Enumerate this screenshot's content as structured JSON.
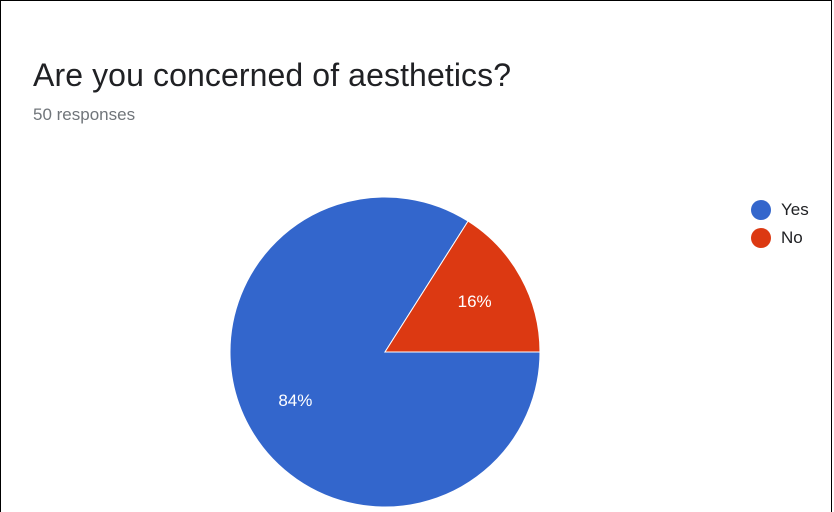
{
  "title": "Are you concerned of aesthetics?",
  "subtitle": "50 responses",
  "chart_data": {
    "type": "pie",
    "title": "Are you concerned of aesthetics?",
    "subtitle": "50 responses",
    "categories": [
      "Yes",
      "No"
    ],
    "values": [
      84,
      16
    ],
    "labels": [
      "84%",
      "16%"
    ],
    "colors": [
      "#3366cc",
      "#dc3912"
    ],
    "legend_position": "right"
  }
}
